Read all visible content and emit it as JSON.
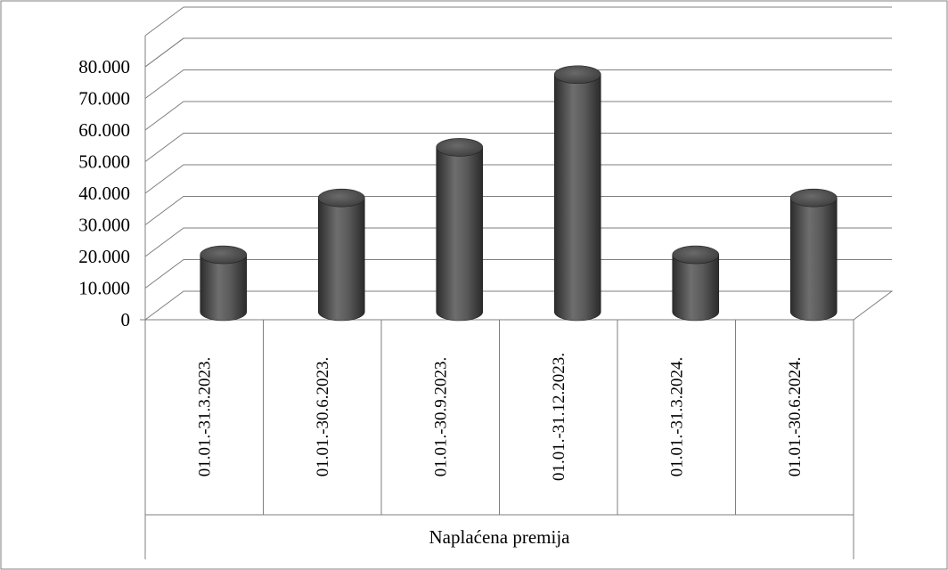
{
  "chart_data": {
    "type": "bar",
    "style": "3d-cylinder",
    "categories": [
      "01.01.-31.3.2023.",
      "01.01.-30.6.2023.",
      "01.01.-30.9.2023.",
      "01.01.-31.12.2023.",
      "01.01.-31.3.2024.",
      "01.01.-30.6.2024."
    ],
    "series": [
      {
        "values": [
          18000,
          36000,
          52000,
          75000,
          18000,
          36000
        ],
        "color": "#4a4a4a"
      }
    ],
    "title": "",
    "xlabel": "Naplaćena premija",
    "ylabel": "",
    "ylim": [
      0,
      80000
    ],
    "yticks": [
      "0",
      "10.000",
      "20.000",
      "30.000",
      "40.000",
      "50.000",
      "60.000",
      "70.000",
      "80.000"
    ],
    "grid": true,
    "legend": "none"
  }
}
